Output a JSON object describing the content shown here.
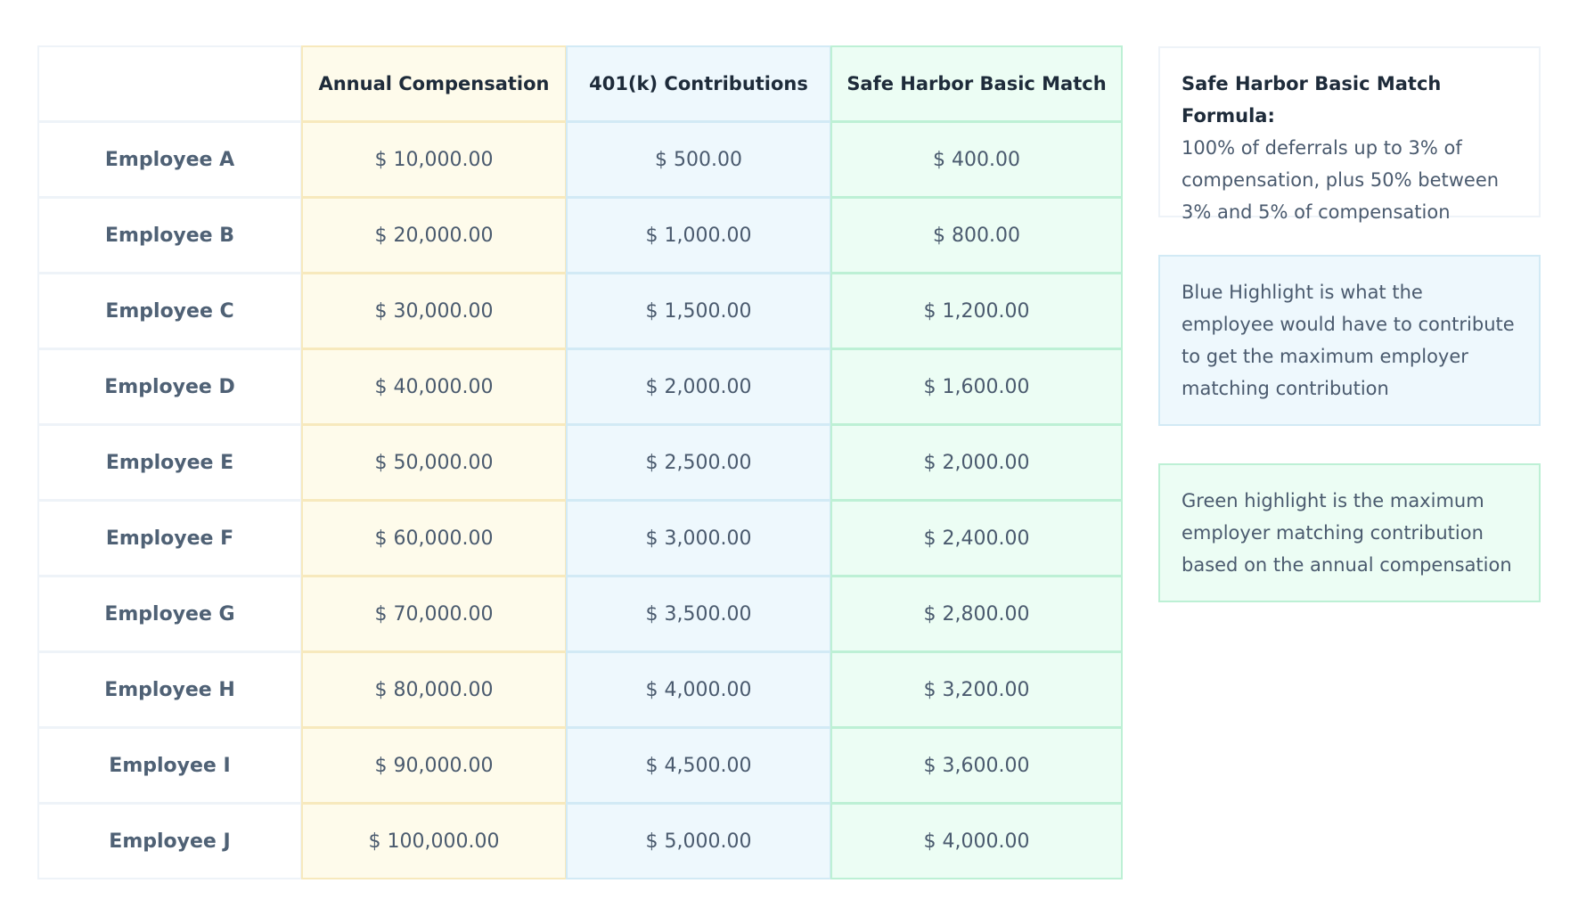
{
  "table": {
    "header": [
      "Annual Compensation",
      "401(k) Contributions",
      "Safe Harbor Basic Match"
    ],
    "rows": [
      [
        "Employee A",
        "$ 10,000.00",
        "$ 500.00",
        "$ 400.00"
      ],
      [
        "Employee B",
        "$ 20,000.00",
        "$ 1,000.00",
        "$ 800.00"
      ],
      [
        "Employee C",
        "$ 30,000.00",
        "$ 1,500.00",
        "$ 1,200.00"
      ],
      [
        "Employee D",
        "$ 40,000.00",
        "$ 2,000.00",
        "$ 1,600.00"
      ],
      [
        "Employee E",
        "$ 50,000.00",
        "$ 2,500.00",
        "$ 2,000.00"
      ],
      [
        "Employee F",
        "$ 60,000.00",
        "$ 3,000.00",
        "$ 2,400.00"
      ],
      [
        "Employee G",
        "$ 70,000.00",
        "$ 3,500.00",
        "$ 2,800.00"
      ],
      [
        "Employee H",
        "$ 80,000.00",
        "$ 4,000.00",
        "$ 3,200.00"
      ],
      [
        "Employee I",
        "$ 90,000.00",
        "$ 4,500.00",
        "$ 3,600.00"
      ],
      [
        "Employee J",
        "$ 100,000.00",
        "$ 5,000.00",
        "$ 4,000.00"
      ]
    ]
  },
  "notes": [
    {
      "title": "Safe Harbor Basic Match Formula:",
      "text": "100% of deferrals up to 3% of compensation, plus 50% between 3% and 5% of compensation"
    },
    {
      "text": "Blue Highlight is what the employee would have to contribute to get the maximum employer matching contribution"
    },
    {
      "text": "Green highlight is the maximum employer matching contribution based on the annual compensation"
    }
  ]
}
